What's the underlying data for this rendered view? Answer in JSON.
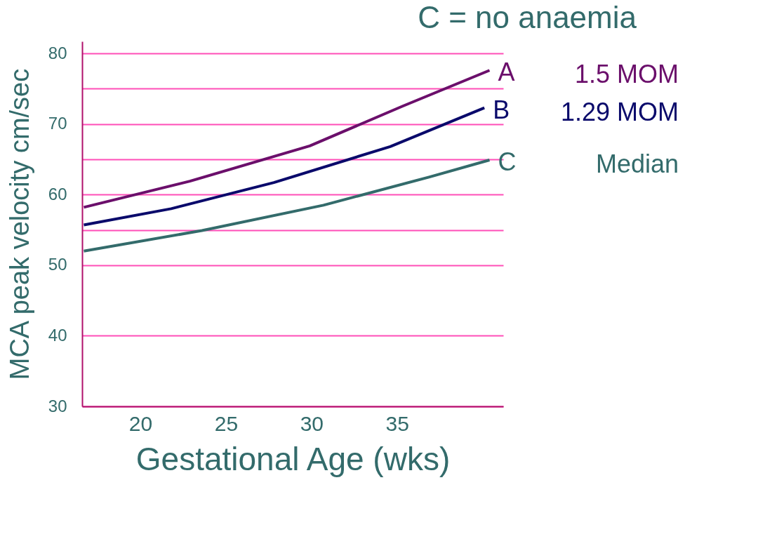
{
  "chart_data": {
    "type": "line",
    "title": "C = no anaemia",
    "xlabel": "Gestational Age  (wks)",
    "ylabel": "MCA peak velocity cm/sec",
    "xlim": [
      16.6,
      41.2
    ],
    "xticks": [
      20,
      25,
      30,
      35
    ],
    "ylim": [
      30,
      81.7
    ],
    "yticks": [
      30,
      40,
      50,
      {
        "value": 55,
        "label": null
      },
      60,
      {
        "value": 65,
        "label": null
      },
      70,
      {
        "value": 75,
        "label": null
      },
      80
    ],
    "grid": "y",
    "line_style": "solid",
    "marker": "none",
    "series": [
      {
        "name": "A",
        "color": "#6b0f6b",
        "x": [
          16.7,
          22.9,
          29.9,
          35.3,
          40.4
        ],
        "values": [
          58.2,
          61.9,
          66.9,
          72.5,
          77.6
        ]
      },
      {
        "name": "B",
        "color": "#0a0a6b",
        "x": [
          16.7,
          21.8,
          27.8,
          34.6,
          40.1
        ],
        "values": [
          55.7,
          58.0,
          61.7,
          66.8,
          72.3
        ]
      },
      {
        "name": "C",
        "color": "#336b6b",
        "x": [
          16.7,
          23.6,
          30.7,
          36.9,
          40.4
        ],
        "values": [
          52.0,
          54.9,
          58.5,
          62.5,
          64.9
        ]
      }
    ],
    "annotations": [
      "1.5 MOM",
      "1.29 MOM",
      "Median"
    ]
  }
}
